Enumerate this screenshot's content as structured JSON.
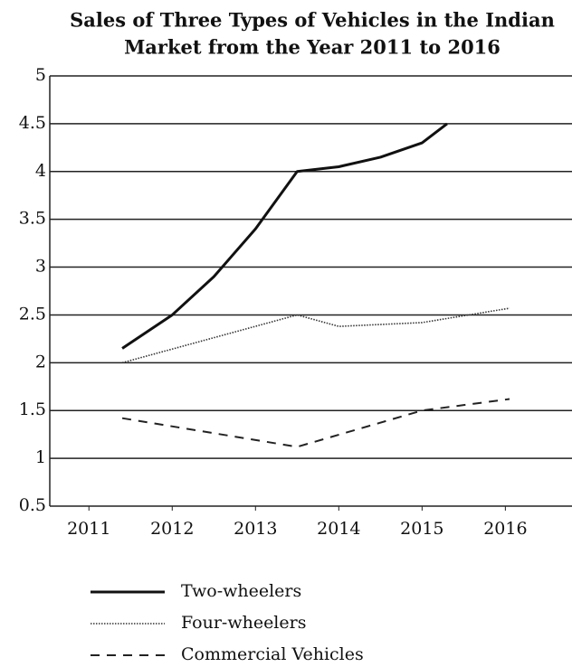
{
  "chart_data": {
    "type": "line",
    "title": [
      "Sales of Three Types of Vehicles in the Indian",
      "Market from the Year 2011 to 2016"
    ],
    "xlim": [
      2010.53,
      2016.8
    ],
    "xticks": [
      2011,
      2012,
      2013,
      2014,
      2015,
      2016
    ],
    "ylim": [
      0.5,
      5
    ],
    "yticks": [
      0.5,
      1,
      1.5,
      2,
      2.5,
      3,
      3.5,
      4,
      4.5,
      5
    ],
    "grid": true,
    "legend": "bottom",
    "series": [
      {
        "name": "Two-wheelers",
        "color": "#111111",
        "dash": "solid",
        "x": [
          2011.4,
          2012,
          2012.5,
          2013,
          2013.5,
          2014,
          2014.5,
          2015,
          2015.3
        ],
        "values": [
          2.15,
          2.5,
          2.9,
          3.4,
          4.0,
          4.05,
          4.15,
          4.3,
          4.5
        ]
      },
      {
        "name": "Four-wheelers",
        "color": "#333333",
        "dash": "dotted",
        "x": [
          2011.4,
          2013.5,
          2014,
          2015,
          2016.05
        ],
        "values": [
          2.0,
          2.5,
          2.38,
          2.42,
          2.57
        ]
      },
      {
        "name": "Commercial Vehicles",
        "color": "#222222",
        "dash": "dashed",
        "x": [
          2011.4,
          2013.5,
          2015,
          2016.05
        ],
        "values": [
          1.42,
          1.12,
          1.5,
          1.62
        ]
      }
    ]
  }
}
